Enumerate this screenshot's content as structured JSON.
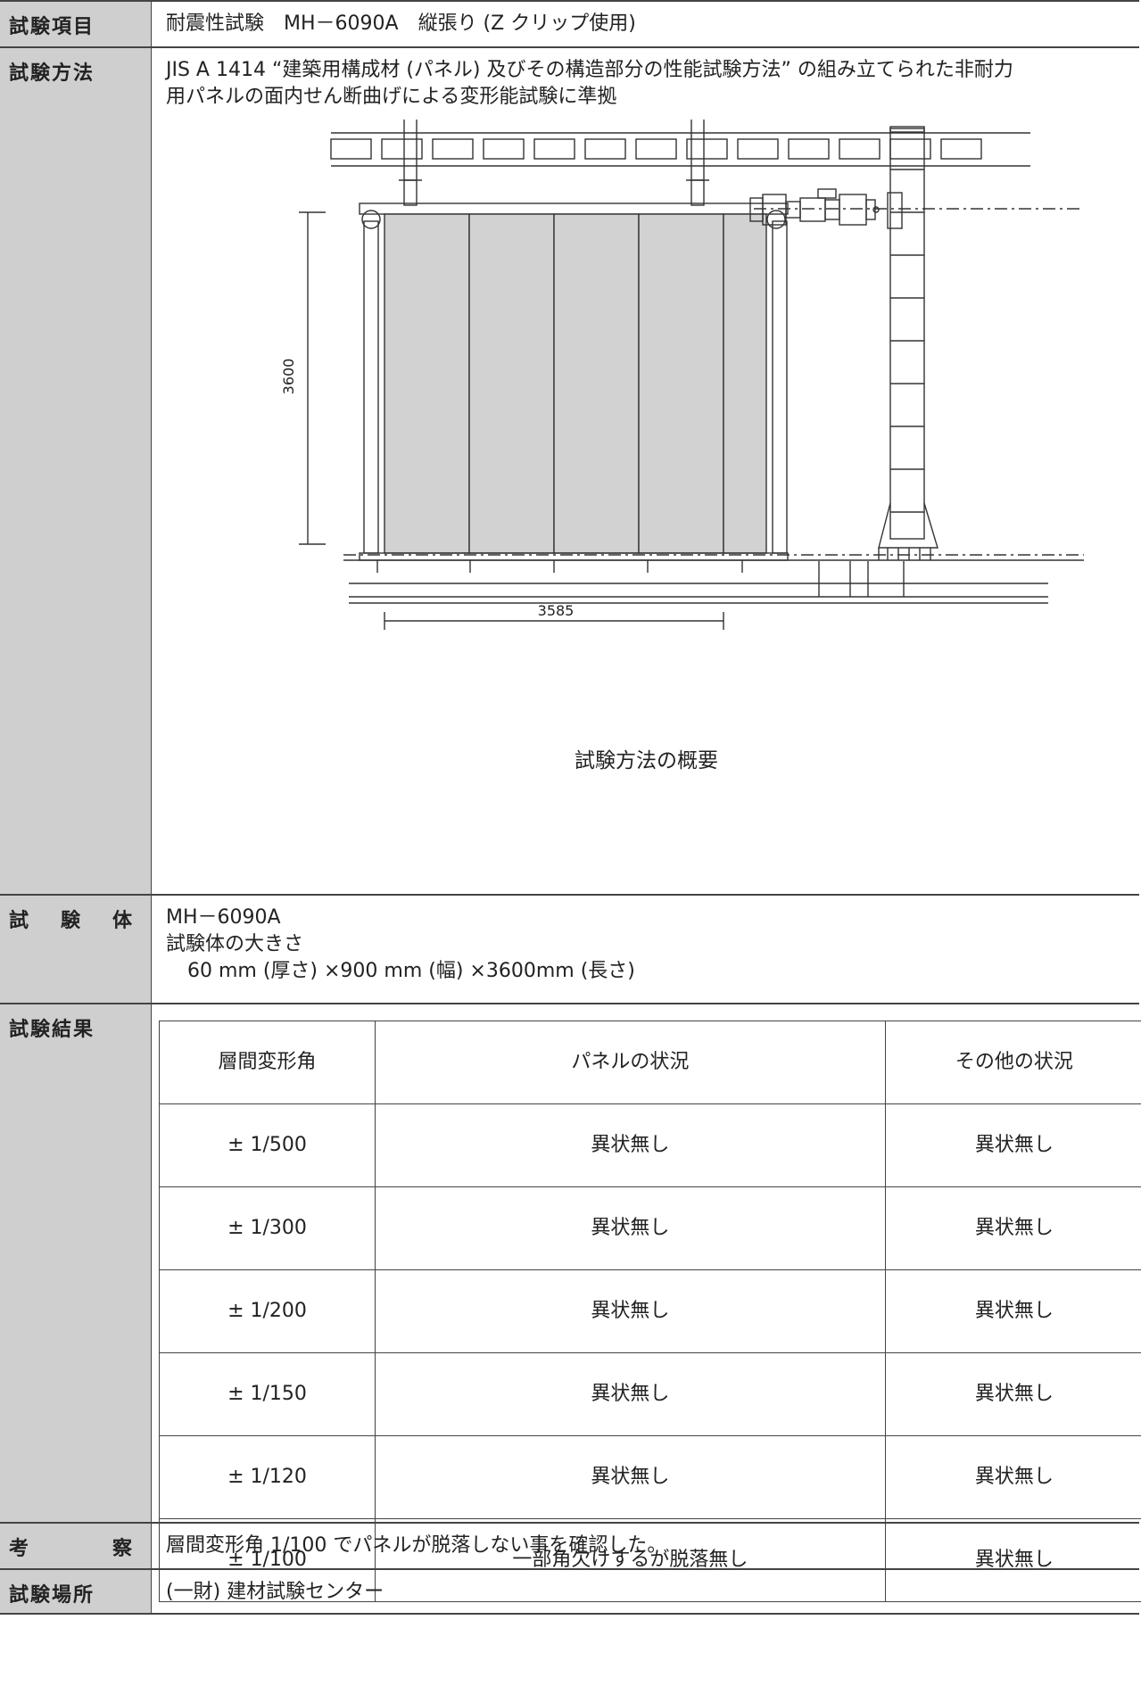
{
  "rows": {
    "item": {
      "label": "試験項目",
      "text": "耐震性試験　MH－6090A　縦張り (Z クリップ使用)"
    },
    "method": {
      "label": "試験方法",
      "line1": "JIS A 1414 “建築用構成材 (パネル) 及びその構造部分の性能試験方法” の組み立てられた非耐力",
      "line2": "用パネルの面内せん断曲げによる変形能試験に準拠",
      "diagram": {
        "dim_height": "3600",
        "dim_width": "3585",
        "caption": "試験方法の概要"
      }
    },
    "specimen": {
      "label": "試験体",
      "label_chars": [
        "試",
        "験",
        "体"
      ],
      "name": "MH－6090A",
      "size_title": "試験体の大きさ",
      "size": "60 mm (厚さ) ×900 mm (幅) ×3600mm (長さ)"
    },
    "results": {
      "label": "試験結果",
      "headers": [
        "層間変形角",
        "パネルの状況",
        "その他の状況"
      ],
      "rows": [
        [
          "± 1/500",
          "異状無し",
          "異状無し"
        ],
        [
          "± 1/300",
          "異状無し",
          "異状無し"
        ],
        [
          "± 1/200",
          "異状無し",
          "異状無し"
        ],
        [
          "± 1/150",
          "異状無し",
          "異状無し"
        ],
        [
          "± 1/120",
          "異状無し",
          "異状無し"
        ],
        [
          "± 1/100",
          "一部角欠けするが脱落無し",
          "異状無し"
        ]
      ]
    },
    "discussion": {
      "label": "考察",
      "label_chars": [
        "考",
        "察"
      ],
      "text": "層間変形角 1/100 でパネルが脱落しない事を確認した。"
    },
    "location": {
      "label": "試験場所",
      "text": "(一財) 建材試験センター"
    }
  }
}
